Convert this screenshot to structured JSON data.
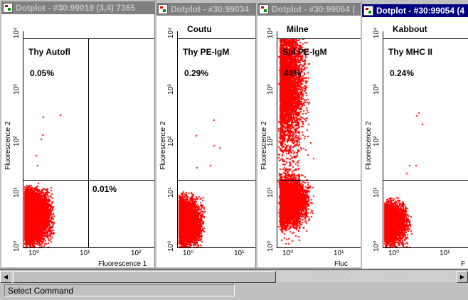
{
  "windows": [
    {
      "title": "Dotplot - #30:99019 (3,4) 7365",
      "author": "",
      "sample": "Thy Autofl",
      "q_upper_left": "0.05%",
      "q_lower_right": "0.01%",
      "x_label": "Fluorescence 1",
      "y_label": "Fluorescence 2",
      "active": false
    },
    {
      "title": "Dotplot - #30:99034",
      "author": "Coutu",
      "sample": "Thy PE-IgM",
      "q_upper_left": "0.29%",
      "q_lower_right": "",
      "x_label": "",
      "y_label": "Fluorescence 2",
      "active": false
    },
    {
      "title": "Dotplot - #30:99064 (",
      "author": "Milne",
      "sample": "Spl PE-IgM",
      "q_upper_left": "46%",
      "q_lower_right": "",
      "x_label": "Fluc",
      "y_label": "Fluorescence 2",
      "active": false
    },
    {
      "title": "Dotplot - #30:99054 (4",
      "author": "Kabbout",
      "sample": "Thy MHC II",
      "q_upper_left": "0.24%",
      "q_lower_right": "",
      "x_label": "F",
      "y_label": "Fluorescence 2",
      "active": true
    }
  ],
  "ticks": {
    "d0": "10⁰",
    "d1": "10¹",
    "d2": "10²",
    "d3": "10³",
    "d4": "10⁴"
  },
  "status": {
    "text": "Select Command"
  },
  "colors": {
    "dots": "#ff0000",
    "active_title": "#000080",
    "inactive_title": "#808080"
  }
}
